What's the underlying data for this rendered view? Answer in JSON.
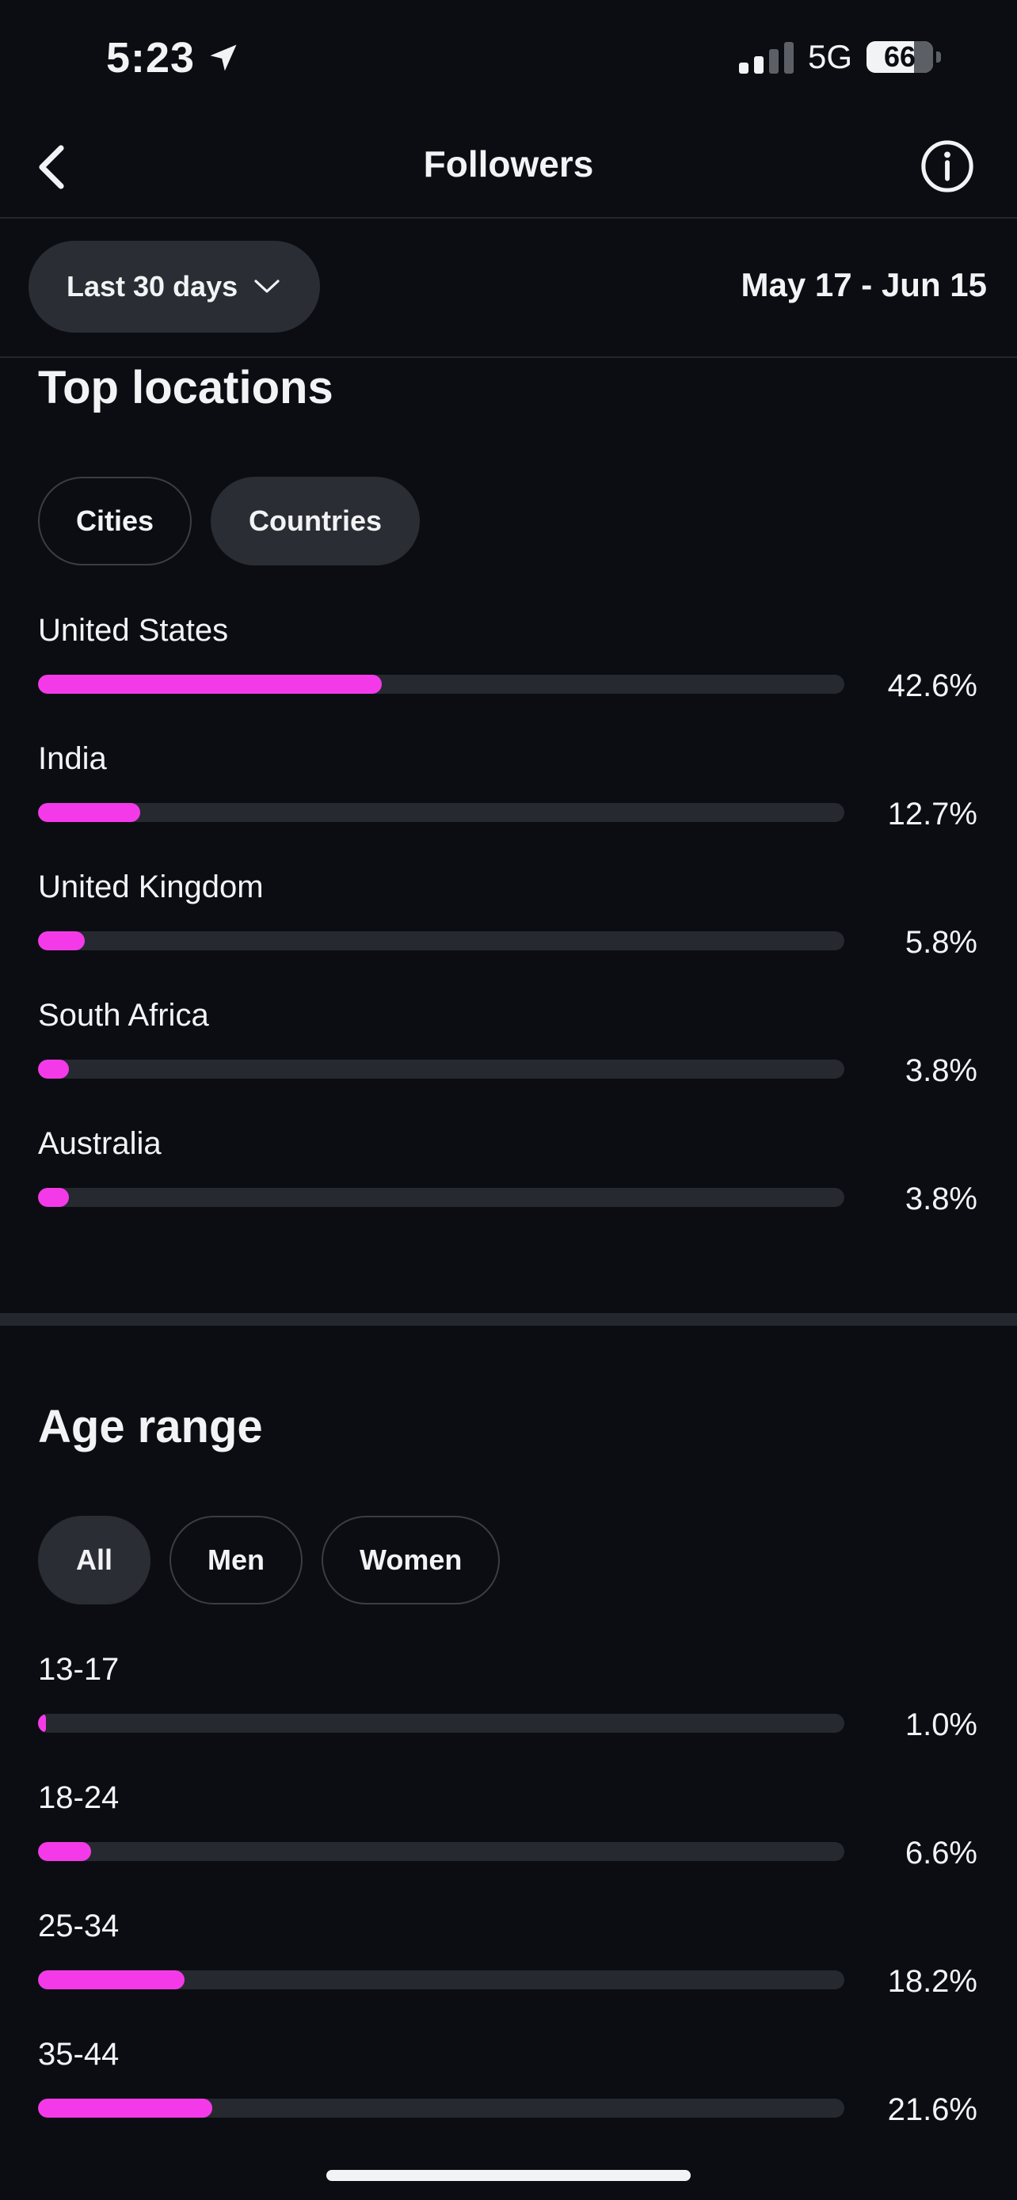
{
  "status_bar": {
    "time": "5:23",
    "network": "5G",
    "battery_level": "66",
    "battery_fraction": 0.66,
    "signal_bars_active": 2,
    "signal_bars_total": 4
  },
  "header": {
    "title": "Followers"
  },
  "filter": {
    "range_label": "Last 30 days",
    "date_range": "May 17 - Jun 15"
  },
  "top_locations": {
    "title": "Top locations",
    "tabs": [
      {
        "label": "Cities",
        "selected": false
      },
      {
        "label": "Countries",
        "selected": true
      }
    ],
    "items": [
      {
        "label": "United States",
        "value": "42.6%",
        "percent": 42.6
      },
      {
        "label": "India",
        "value": "12.7%",
        "percent": 12.7
      },
      {
        "label": "United Kingdom",
        "value": "5.8%",
        "percent": 5.8
      },
      {
        "label": "South Africa",
        "value": "3.8%",
        "percent": 3.8
      },
      {
        "label": "Australia",
        "value": "3.8%",
        "percent": 3.8
      }
    ]
  },
  "age_range": {
    "title": "Age range",
    "tabs": [
      {
        "label": "All",
        "selected": true
      },
      {
        "label": "Men",
        "selected": false
      },
      {
        "label": "Women",
        "selected": false
      }
    ],
    "items": [
      {
        "label": "13-17",
        "value": "1.0%",
        "percent": 1.0
      },
      {
        "label": "18-24",
        "value": "6.6%",
        "percent": 6.6
      },
      {
        "label": "25-34",
        "value": "18.2%",
        "percent": 18.2
      },
      {
        "label": "35-44",
        "value": "21.6%",
        "percent": 21.6
      }
    ]
  },
  "colors": {
    "background": "#0b0d12",
    "bar_fill": "#f43ae8",
    "bar_track": "#26292f",
    "chip_selected": "#2a2d33"
  },
  "icons": {
    "back": "chevron-left-icon",
    "info": "info-icon",
    "dropdown": "chevron-down-icon",
    "location": "location-arrow-icon"
  }
}
